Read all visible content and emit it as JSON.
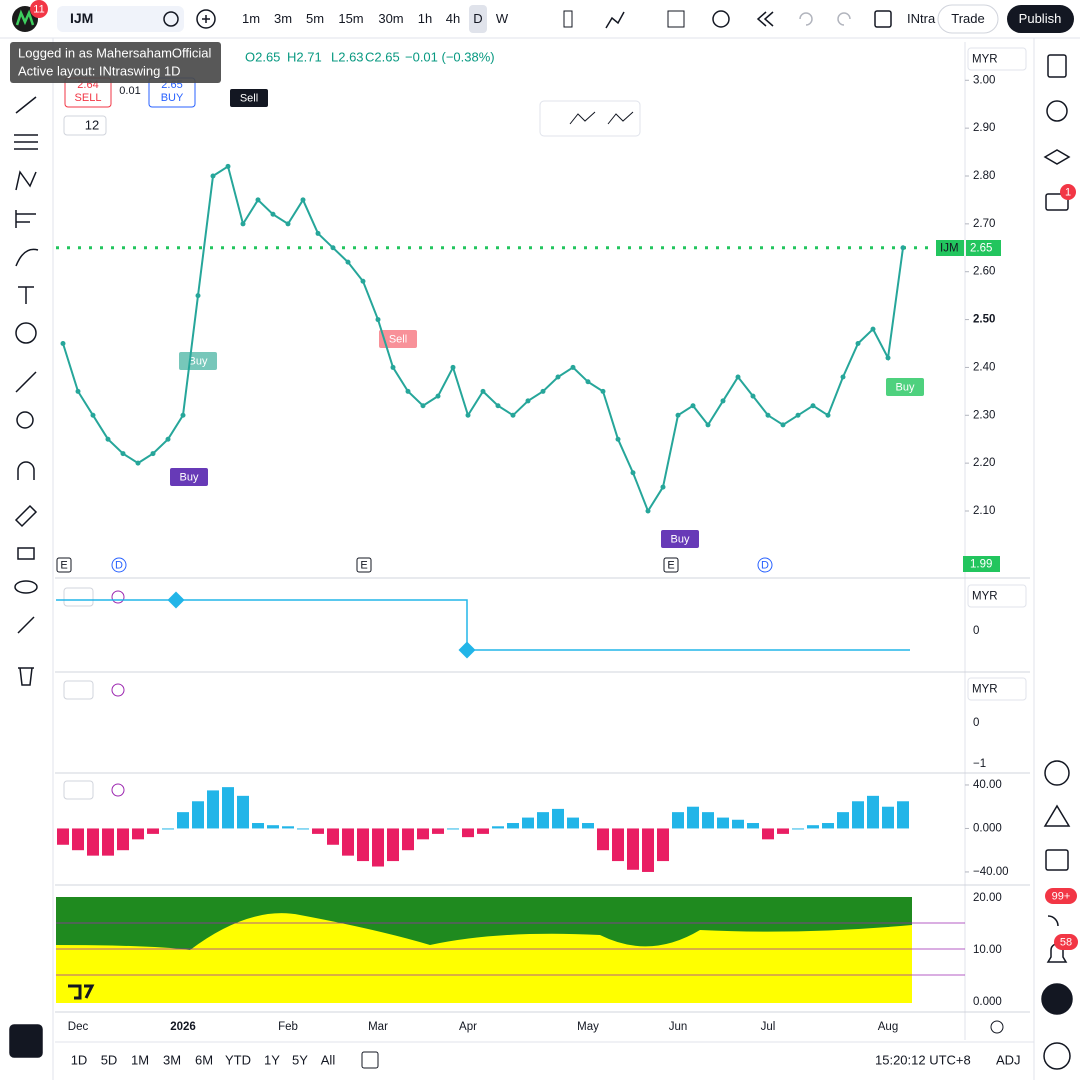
{
  "toolbar": {
    "badge": "11",
    "symbol": "IJM",
    "intervals": [
      "1m",
      "3m",
      "5m",
      "15m",
      "30m",
      "1h",
      "4h",
      "D",
      "W"
    ],
    "layout_name": "INtra",
    "trade": "Trade",
    "publish": "Publish"
  },
  "tooltip": [
    "Logged in as MahersahamOfficial",
    "Active layout: INtraswing 1D"
  ],
  "legend": {
    "open": "O2.65",
    "high": "H2.71",
    "low": "L2.63",
    "close": "C2.65",
    "change": "−0.01 (−0.38%)",
    "sell_price": "2.64",
    "sell": "SELL",
    "spread": "0.01",
    "buy_price": "2.65",
    "buy": "BUY",
    "indicator_count": "12"
  },
  "signals": [
    "Sell",
    "Buy",
    "Sell",
    "Buy",
    "Buy",
    "Buy"
  ],
  "events": [
    "E",
    "D",
    "E",
    "E",
    "D"
  ],
  "currency": "MYR",
  "price_label": {
    "symbol": "IJM",
    "value": "2.65"
  },
  "volume_label": "1.99",
  "panel_axes": {
    "p2": [
      "0"
    ],
    "p3": [
      "0",
      "−1"
    ],
    "p5": [
      "20.00",
      "10.00",
      "0.000"
    ]
  },
  "right_badges": {
    "chat": "1",
    "feed": "99+",
    "alerts": "58"
  },
  "ranges": [
    "1D",
    "5D",
    "1M",
    "3M",
    "6M",
    "YTD",
    "1Y",
    "5Y",
    "All"
  ],
  "clock": "15:20:12 UTC+8",
  "adj": "ADJ",
  "chart_data": [
    {
      "type": "line",
      "color": "#26a69a",
      "categories": [
        null,
        "Dec",
        null,
        null,
        null,
        null,
        null,
        null,
        "2026",
        null,
        null,
        null,
        null,
        null,
        null,
        "Feb",
        null,
        null,
        null,
        null,
        null,
        "Mar",
        null,
        null,
        null,
        null,
        null,
        "Apr",
        null,
        null,
        null,
        null,
        null,
        null,
        null,
        "May",
        null,
        null,
        null,
        null,
        null,
        "Jun",
        null,
        null,
        null,
        null,
        null,
        "Jul",
        null,
        null,
        null,
        null,
        null,
        null,
        null,
        "Aug",
        null
      ],
      "values": [
        2.45,
        2.35,
        2.3,
        2.25,
        2.22,
        2.2,
        2.22,
        2.25,
        2.3,
        2.55,
        2.8,
        2.82,
        2.7,
        2.75,
        2.72,
        2.7,
        2.75,
        2.68,
        2.65,
        2.62,
        2.58,
        2.5,
        2.4,
        2.35,
        2.32,
        2.34,
        2.4,
        2.3,
        2.35,
        2.32,
        2.3,
        2.33,
        2.35,
        2.38,
        2.4,
        2.37,
        2.35,
        2.25,
        2.18,
        2.1,
        2.15,
        2.3,
        2.32,
        2.28,
        2.33,
        2.38,
        2.34,
        2.3,
        2.28,
        2.3,
        2.32,
        2.3,
        2.38,
        2.45,
        2.48,
        2.42,
        2.65
      ],
      "ylim": [
        1.96,
        3.08
      ],
      "yticks": [
        {
          "value": 2.1,
          "label": "2.10"
        },
        {
          "value": 2.2,
          "label": "2.20"
        },
        {
          "value": 2.3,
          "label": "2.30"
        },
        {
          "value": 2.4,
          "label": "2.40"
        },
        {
          "value": 2.5,
          "label": "2.50"
        },
        {
          "value": 2.6,
          "label": "2.60"
        },
        {
          "value": 2.7,
          "label": "2.70"
        },
        {
          "value": 2.8,
          "label": "2.80"
        },
        {
          "value": 2.9,
          "label": "2.90"
        },
        {
          "value": 3.0,
          "label": "3.00"
        }
      ]
    },
    {
      "type": "bar",
      "colors": {
        "up": "#22b5e8",
        "down": "#e91e63"
      },
      "values": [
        -15,
        -20,
        -25,
        -25,
        -20,
        -10,
        -5,
        0,
        15,
        25,
        35,
        38,
        30,
        5,
        3,
        2,
        0,
        -5,
        -15,
        -25,
        -30,
        -35,
        -30,
        -20,
        -10,
        -5,
        0,
        -8,
        -5,
        2,
        5,
        10,
        15,
        18,
        10,
        5,
        -20,
        -30,
        -38,
        -40,
        -30,
        15,
        20,
        15,
        10,
        8,
        5,
        -10,
        -5,
        0,
        3,
        5,
        15,
        25,
        30,
        20,
        25
      ],
      "ylim": [
        -52,
        51
      ],
      "yticks": [
        {
          "value": 40,
          "label": "40.00"
        },
        {
          "value": 0,
          "label": "0.000"
        },
        {
          "value": -40,
          "label": "−40.00"
        }
      ]
    }
  ]
}
